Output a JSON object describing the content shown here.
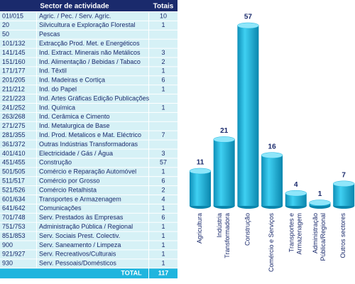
{
  "table": {
    "headers": [
      "Sector de actividade",
      "Totais"
    ],
    "rows": [
      [
        "01I/015",
        "Agric. / Pec. / Serv. Agric.",
        10
      ],
      [
        "20",
        "Silvicultura e Exploração Florestal",
        1
      ],
      [
        "50",
        "Pescas",
        null
      ],
      [
        "101/132",
        "Extracção Prod. Met. e Energéticos",
        null
      ],
      [
        "141/145",
        "Ind. Extract. Minerais não Metálicos",
        3
      ],
      [
        "151/160",
        "Ind. Alimentação / Bebidas / Tabaco",
        2
      ],
      [
        "171/177",
        "Ind. Têxtil",
        1
      ],
      [
        "201/205",
        "Ind. Madeiras e Cortiça",
        6
      ],
      [
        "211/212",
        "Ind. do Papel",
        1
      ],
      [
        "221/223",
        "Ind. Artes Gráficas Edição Publicações",
        null
      ],
      [
        "241/252",
        "Ind. Química",
        1
      ],
      [
        "263/268",
        "Ind. Cerâmica e Cimento",
        null
      ],
      [
        "271/275",
        "Ind. Metalurgica de Base",
        null
      ],
      [
        "281/355",
        "Ind. Prod. Metalicos e Mat. Eléctrico",
        7
      ],
      [
        "361/372",
        "Outras Indústrias Transformadoras",
        null
      ],
      [
        "401/410",
        "Electricidade / Gás / Água",
        3
      ],
      [
        "451/455",
        "Construção",
        57
      ],
      [
        "501/505",
        "Comércio e Reparação Automóvel",
        1
      ],
      [
        "511/517",
        "Comércio por Grosso",
        6
      ],
      [
        "521/526",
        "Comércio Retalhista",
        2
      ],
      [
        "601/634",
        "Transportes e Armazenagem",
        4
      ],
      [
        "641/642",
        "Comunicações",
        1
      ],
      [
        "701/748",
        "Serv. Prestados às Empresas",
        6
      ],
      [
        "751/753",
        "Administração Pública / Regional",
        1
      ],
      [
        "851/853",
        "Serv. Sociais Prest. Colectiv.",
        1
      ],
      [
        "900",
        "Serv. Saneamento / Limpeza",
        1
      ],
      [
        "921/927",
        "Serv. Recreativos/Culturais",
        1
      ],
      [
        "930",
        "Serv. Pessoais/Domésticos",
        1
      ]
    ],
    "total": {
      "label": "TOTAL",
      "value": 117
    }
  },
  "chart_data": {
    "type": "bar",
    "categories": [
      "Agricultura",
      "Indústria\nTransformadora",
      "Construção",
      "Comércio e Serviços",
      "Transportes e\nArmazenagem",
      "Administração\nPública/Regional",
      "Outros sectores"
    ],
    "values": [
      11,
      21,
      57,
      16,
      4,
      1,
      7
    ],
    "color": "#1bb6df"
  }
}
